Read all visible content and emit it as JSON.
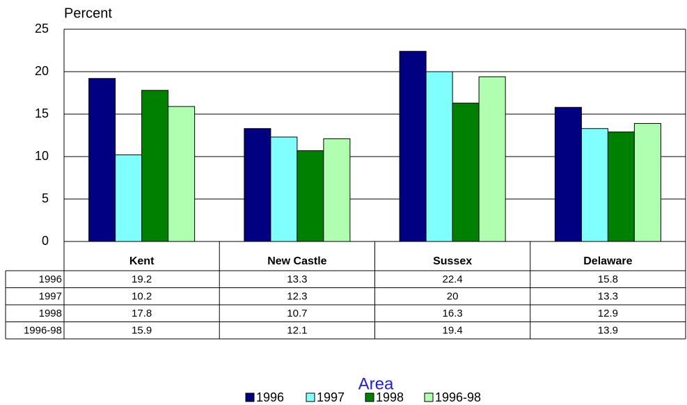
{
  "chart_data": {
    "type": "bar",
    "y_label": "Percent",
    "x_label": "Area",
    "categories": [
      "Kent",
      "New Castle",
      "Sussex",
      "Delaware"
    ],
    "series": [
      {
        "name": "1996",
        "color": "#000080",
        "values": [
          19.2,
          13.3,
          22.4,
          15.8
        ]
      },
      {
        "name": "1997",
        "color": "#80ffff",
        "values": [
          10.2,
          12.3,
          20,
          13.3
        ]
      },
      {
        "name": "1998",
        "color": "#008000",
        "values": [
          17.8,
          10.7,
          16.3,
          12.9
        ]
      },
      {
        "name": "1996-98",
        "color": "#b0ffb0",
        "values": [
          15.9,
          12.1,
          19.4,
          13.9
        ]
      }
    ],
    "ylim": [
      0,
      25
    ],
    "yticks": [
      0,
      5,
      10,
      15,
      20,
      25
    ],
    "grid": true
  }
}
